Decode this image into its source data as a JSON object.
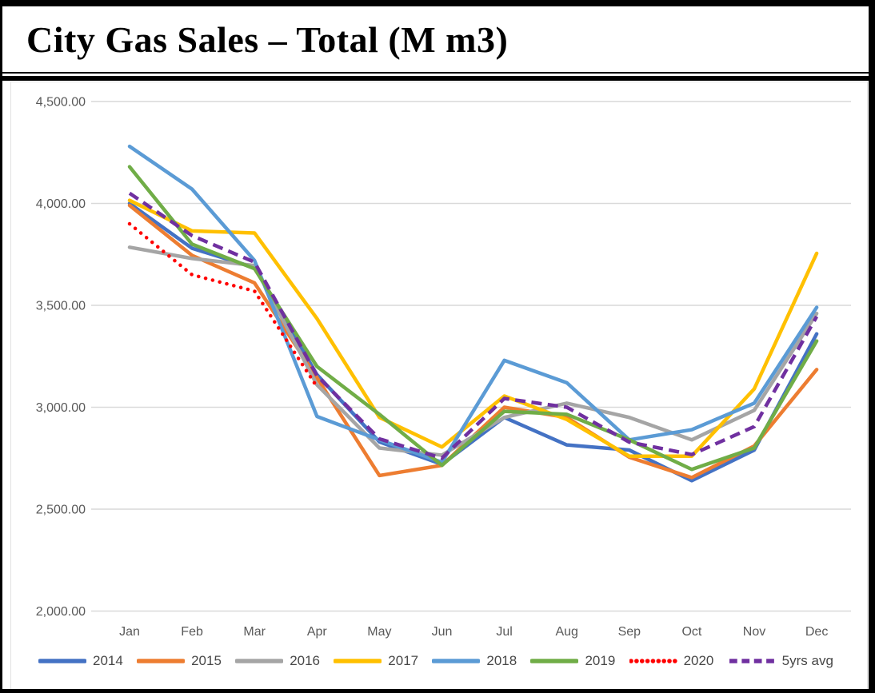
{
  "title": "City Gas Sales – Total (M m3)",
  "chart_data": {
    "type": "line",
    "title": "City Gas Sales – Total (M m3)",
    "unit": "M m3",
    "categories": [
      "Jan",
      "Feb",
      "Mar",
      "Apr",
      "May",
      "Jun",
      "Jul",
      "Aug",
      "Sep",
      "Oct",
      "Nov",
      "Dec"
    ],
    "series": [
      {
        "name": "2014",
        "color": "#4472C4",
        "line_style": "solid",
        "values": [
          4000,
          3780,
          3685,
          3160,
          2830,
          2720,
          2950,
          2815,
          2790,
          2640,
          2790,
          3360
        ]
      },
      {
        "name": "2015",
        "color": "#ED7D31",
        "line_style": "solid",
        "values": [
          3990,
          3745,
          3610,
          3145,
          2665,
          2715,
          3000,
          2950,
          2755,
          2655,
          2810,
          3185
        ]
      },
      {
        "name": "2016",
        "color": "#A5A5A5",
        "line_style": "solid",
        "values": [
          3785,
          3730,
          3695,
          3110,
          2800,
          2765,
          2950,
          3020,
          2950,
          2840,
          2985,
          3460
        ]
      },
      {
        "name": "2017",
        "color": "#FFC000",
        "line_style": "solid",
        "values": [
          4015,
          3865,
          3855,
          3435,
          2950,
          2805,
          3055,
          2940,
          2760,
          2760,
          3090,
          3755
        ]
      },
      {
        "name": "2018",
        "color": "#5B9BD5",
        "line_style": "solid",
        "values": [
          4280,
          4070,
          3720,
          2955,
          2840,
          2730,
          3230,
          3120,
          2840,
          2890,
          3020,
          3490
        ]
      },
      {
        "name": "2019",
        "color": "#70AD47",
        "line_style": "solid",
        "values": [
          4180,
          3800,
          3680,
          3200,
          2965,
          2715,
          2980,
          2965,
          2840,
          2695,
          2800,
          3325
        ]
      },
      {
        "name": "2020",
        "color": "#FF0000",
        "line_style": "dotted",
        "values": [
          3900,
          3650,
          3570,
          3100,
          null,
          null,
          null,
          null,
          null,
          null,
          null,
          null
        ]
      },
      {
        "name": "5yrs avg",
        "color": "#7030A0",
        "line_style": "dashed",
        "values": [
          4050,
          3842,
          3712,
          3155,
          2845,
          2750,
          3043,
          3000,
          2829,
          2768,
          2905,
          3445
        ]
      }
    ],
    "ylim": [
      2000,
      4500
    ],
    "yticks": [
      {
        "value": 4500,
        "label": "4,500.00"
      },
      {
        "value": 4000,
        "label": "4,000.00"
      },
      {
        "value": 3500,
        "label": "3,500.00"
      },
      {
        "value": 3000,
        "label": "3,000.00"
      },
      {
        "value": 2500,
        "label": "2,500.00"
      },
      {
        "value": 2000,
        "label": "2,000.00"
      }
    ],
    "grid": "horizontal",
    "legend_position": "bottom"
  }
}
